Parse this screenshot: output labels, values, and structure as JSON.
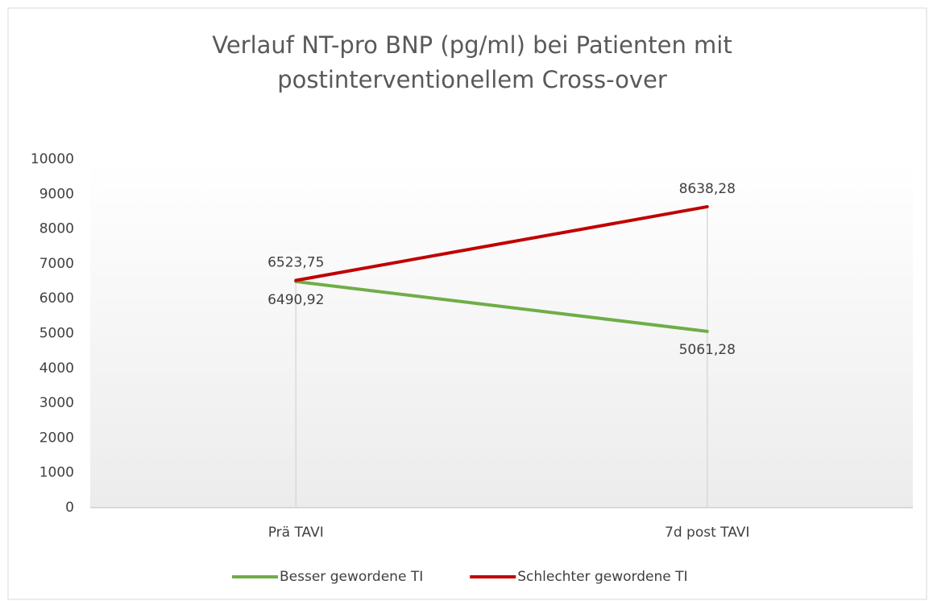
{
  "chart_data": {
    "type": "line",
    "title": [
      "Verlauf NT-pro BNP (pg/ml) bei Patienten mit",
      "postinterventionellem Cross-over"
    ],
    "categories": [
      "Prä TAVI",
      "7d post TAVI"
    ],
    "series": [
      {
        "name": "Besser gewordene TI",
        "color": "#70ad47",
        "values": [
          6490.92,
          5061.28
        ],
        "value_labels": [
          "6490,92",
          "5061,28"
        ],
        "label_position": "below"
      },
      {
        "name": "Schlechter gewordene TI",
        "color": "#c00000",
        "values": [
          6523.75,
          8638.28
        ],
        "value_labels": [
          "6523,75",
          "8638,28"
        ],
        "label_position": "above"
      }
    ],
    "ylim": [
      0,
      10000
    ],
    "yticks": [
      0,
      1000,
      2000,
      3000,
      4000,
      5000,
      6000,
      7000,
      8000,
      9000,
      10000
    ],
    "grid": false,
    "drop_lines": true,
    "legend": "bottom"
  }
}
